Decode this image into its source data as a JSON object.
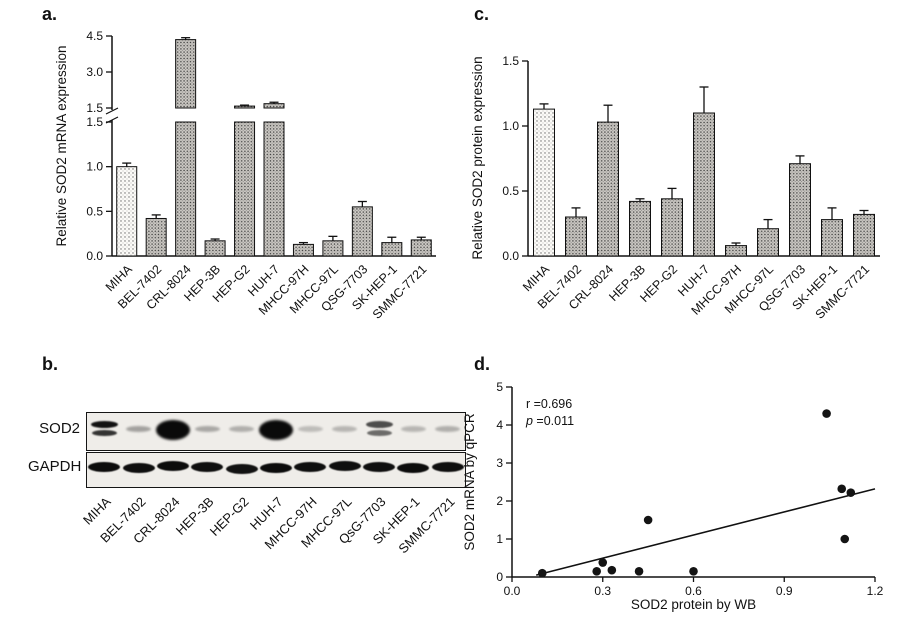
{
  "panels": {
    "a": {
      "label": "a."
    },
    "b": {
      "label": "b."
    },
    "c": {
      "label": "c."
    },
    "d": {
      "label": "d."
    }
  },
  "chart_data": [
    {
      "id": "panel-a",
      "type": "bar",
      "title": "",
      "xlabel": "",
      "ylabel": "Relative SOD2 mRNA  expression",
      "categories": [
        "MIHA",
        "BEL-7402",
        "CRL-8024",
        "HEP-3B",
        "HEP-G2",
        "HUH-7",
        "MHCC-97H",
        "MHCC-97L",
        "QSG-7703",
        "SK-HEP-1",
        "SMMC-7721"
      ],
      "values": [
        1.0,
        0.42,
        4.35,
        0.17,
        1.58,
        1.68,
        0.13,
        0.17,
        0.55,
        0.15,
        0.18
      ],
      "errors": [
        0.04,
        0.04,
        0.08,
        0.02,
        0.04,
        0.06,
        0.02,
        0.05,
        0.06,
        0.06,
        0.03
      ],
      "axis_break": {
        "low_range": [
          0.0,
          1.5
        ],
        "high_range": [
          1.5,
          4.5
        ]
      },
      "yticks_low": [
        0.0,
        0.5,
        1.0,
        1.5
      ],
      "yticks_high": [
        1.5,
        3.0,
        4.5
      ],
      "grid": false,
      "legend": false,
      "first_bar_style": "sparse-stipple",
      "bar_style": "dense-stipple"
    },
    {
      "id": "panel-c",
      "type": "bar",
      "title": "",
      "xlabel": "",
      "ylabel": "Relative SOD2 protein expression",
      "categories": [
        "MIHA",
        "BEL-7402",
        "CRL-8024",
        "HEP-3B",
        "HEP-G2",
        "HUH-7",
        "MHCC-97H",
        "MHCC-97L",
        "QSG-7703",
        "SK-HEP-1",
        "SMMC-7721"
      ],
      "values": [
        1.13,
        0.3,
        1.03,
        0.42,
        0.44,
        1.1,
        0.08,
        0.21,
        0.71,
        0.28,
        0.32
      ],
      "errors": [
        0.04,
        0.07,
        0.13,
        0.02,
        0.08,
        0.2,
        0.02,
        0.07,
        0.06,
        0.09,
        0.03
      ],
      "ylim": [
        0.0,
        1.5
      ],
      "yticks": [
        0.0,
        0.5,
        1.0,
        1.5
      ],
      "grid": false,
      "legend": false
    },
    {
      "id": "panel-d",
      "type": "scatter",
      "title": "",
      "xlabel": "SOD2 protein by WB",
      "ylabel": "SOD2 mRNA by qPCR",
      "xlim": [
        0.0,
        1.2
      ],
      "ylim": [
        0,
        5
      ],
      "xticks": [
        0.0,
        0.3,
        0.6,
        0.9,
        1.2
      ],
      "yticks": [
        0,
        1,
        2,
        3,
        4,
        5
      ],
      "points": [
        [
          0.1,
          0.1
        ],
        [
          0.28,
          0.15
        ],
        [
          0.3,
          0.38
        ],
        [
          0.33,
          0.18
        ],
        [
          0.42,
          0.15
        ],
        [
          0.45,
          1.5
        ],
        [
          0.6,
          0.15
        ],
        [
          1.04,
          4.3
        ],
        [
          1.09,
          2.32
        ],
        [
          1.12,
          2.22
        ],
        [
          1.1,
          1.0
        ]
      ],
      "trend_line": {
        "x1": 0.08,
        "y1": 0.05,
        "x2": 1.2,
        "y2": 2.32
      },
      "annotation": {
        "r_text": "r =0.696",
        "p_italic": "p",
        "p_rest": " =0.011"
      },
      "grid": false,
      "legend": false
    }
  ],
  "blot": {
    "rows": [
      {
        "label": "SOD2"
      },
      {
        "label": "GAPDH"
      }
    ],
    "lane_labels": [
      "MIHA",
      "BEL-7402",
      "CRL-8024",
      "HEP-3B",
      "HEP-G2",
      "HUH-7",
      "MHCC-97H",
      "MHCC-97L",
      "QsG-7703",
      "SK-HEP-1",
      "SMMC-7721"
    ],
    "sod2_intensity": [
      0.95,
      0.3,
      1.0,
      0.25,
      0.2,
      1.0,
      0.1,
      0.15,
      0.6,
      0.15,
      0.2
    ],
    "sod2_doublet": [
      true,
      false,
      false,
      false,
      false,
      false,
      false,
      false,
      true,
      false,
      false
    ],
    "sod2_blob": [
      false,
      false,
      true,
      false,
      false,
      true,
      false,
      false,
      false,
      false,
      false
    ],
    "gapdh_intensity": [
      0.95,
      0.9,
      0.95,
      0.9,
      0.85,
      0.95,
      0.9,
      0.9,
      0.9,
      0.95,
      0.9
    ]
  }
}
